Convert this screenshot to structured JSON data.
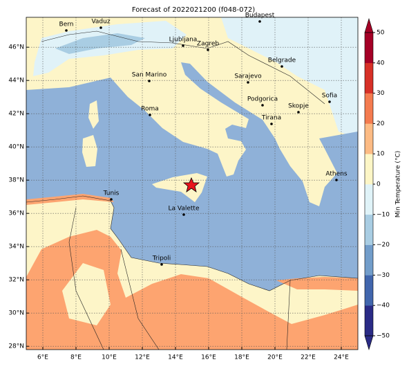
{
  "title": "Forecast of 2022021200 (f048-072)",
  "map": {
    "xlim": [
      5,
      25
    ],
    "ylim": [
      27.8,
      47.8
    ],
    "xticks": [
      {
        "value": 6,
        "label": "6°E"
      },
      {
        "value": 8,
        "label": "8°E"
      },
      {
        "value": 10,
        "label": "10°E"
      },
      {
        "value": 12,
        "label": "12°E"
      },
      {
        "value": 14,
        "label": "14°E"
      },
      {
        "value": 16,
        "label": "16°E"
      },
      {
        "value": 18,
        "label": "18°E"
      },
      {
        "value": 20,
        "label": "20°E"
      },
      {
        "value": 22,
        "label": "22°E"
      },
      {
        "value": 24,
        "label": "24°E"
      }
    ],
    "yticks": [
      {
        "value": 28,
        "label": "28°N"
      },
      {
        "value": 30,
        "label": "30°N"
      },
      {
        "value": 32,
        "label": "32°N"
      },
      {
        "value": 34,
        "label": "34°N"
      },
      {
        "value": 36,
        "label": "36°N"
      },
      {
        "value": 38,
        "label": "38°N"
      },
      {
        "value": 40,
        "label": "40°N"
      },
      {
        "value": 42,
        "label": "42°N"
      },
      {
        "value": 44,
        "label": "44°N"
      },
      {
        "value": 46,
        "label": "46°N"
      }
    ],
    "grid": true,
    "cities": [
      "Bern",
      "Vaduz",
      "Budapest",
      "Ljubljana",
      "Zagreb",
      "Belgrade",
      "San Marino",
      "Sarajevo",
      "Sofia",
      "Podgorica",
      "Skopje",
      "Roma",
      "Tirana",
      "Athens",
      "Tunis",
      "La Valette",
      "Tripoli"
    ]
  },
  "colorbar": {
    "label": "Min Temperature (°C)",
    "clim": [
      -50,
      50
    ],
    "ticks": [
      {
        "value": -50,
        "label": "−50"
      },
      {
        "value": -40,
        "label": "−40"
      },
      {
        "value": -30,
        "label": "−30"
      },
      {
        "value": -20,
        "label": "−20"
      },
      {
        "value": -10,
        "label": "−10"
      },
      0,
      10,
      20,
      30,
      40,
      50
    ],
    "colors": [
      "#2a2b86",
      "#4166ad",
      "#729dca",
      "#a9cde3",
      "#e0f3f8",
      "#fdf6c6",
      "#fdbb84",
      "#f47b4f",
      "#d73027",
      "#a50026"
    ]
  }
}
